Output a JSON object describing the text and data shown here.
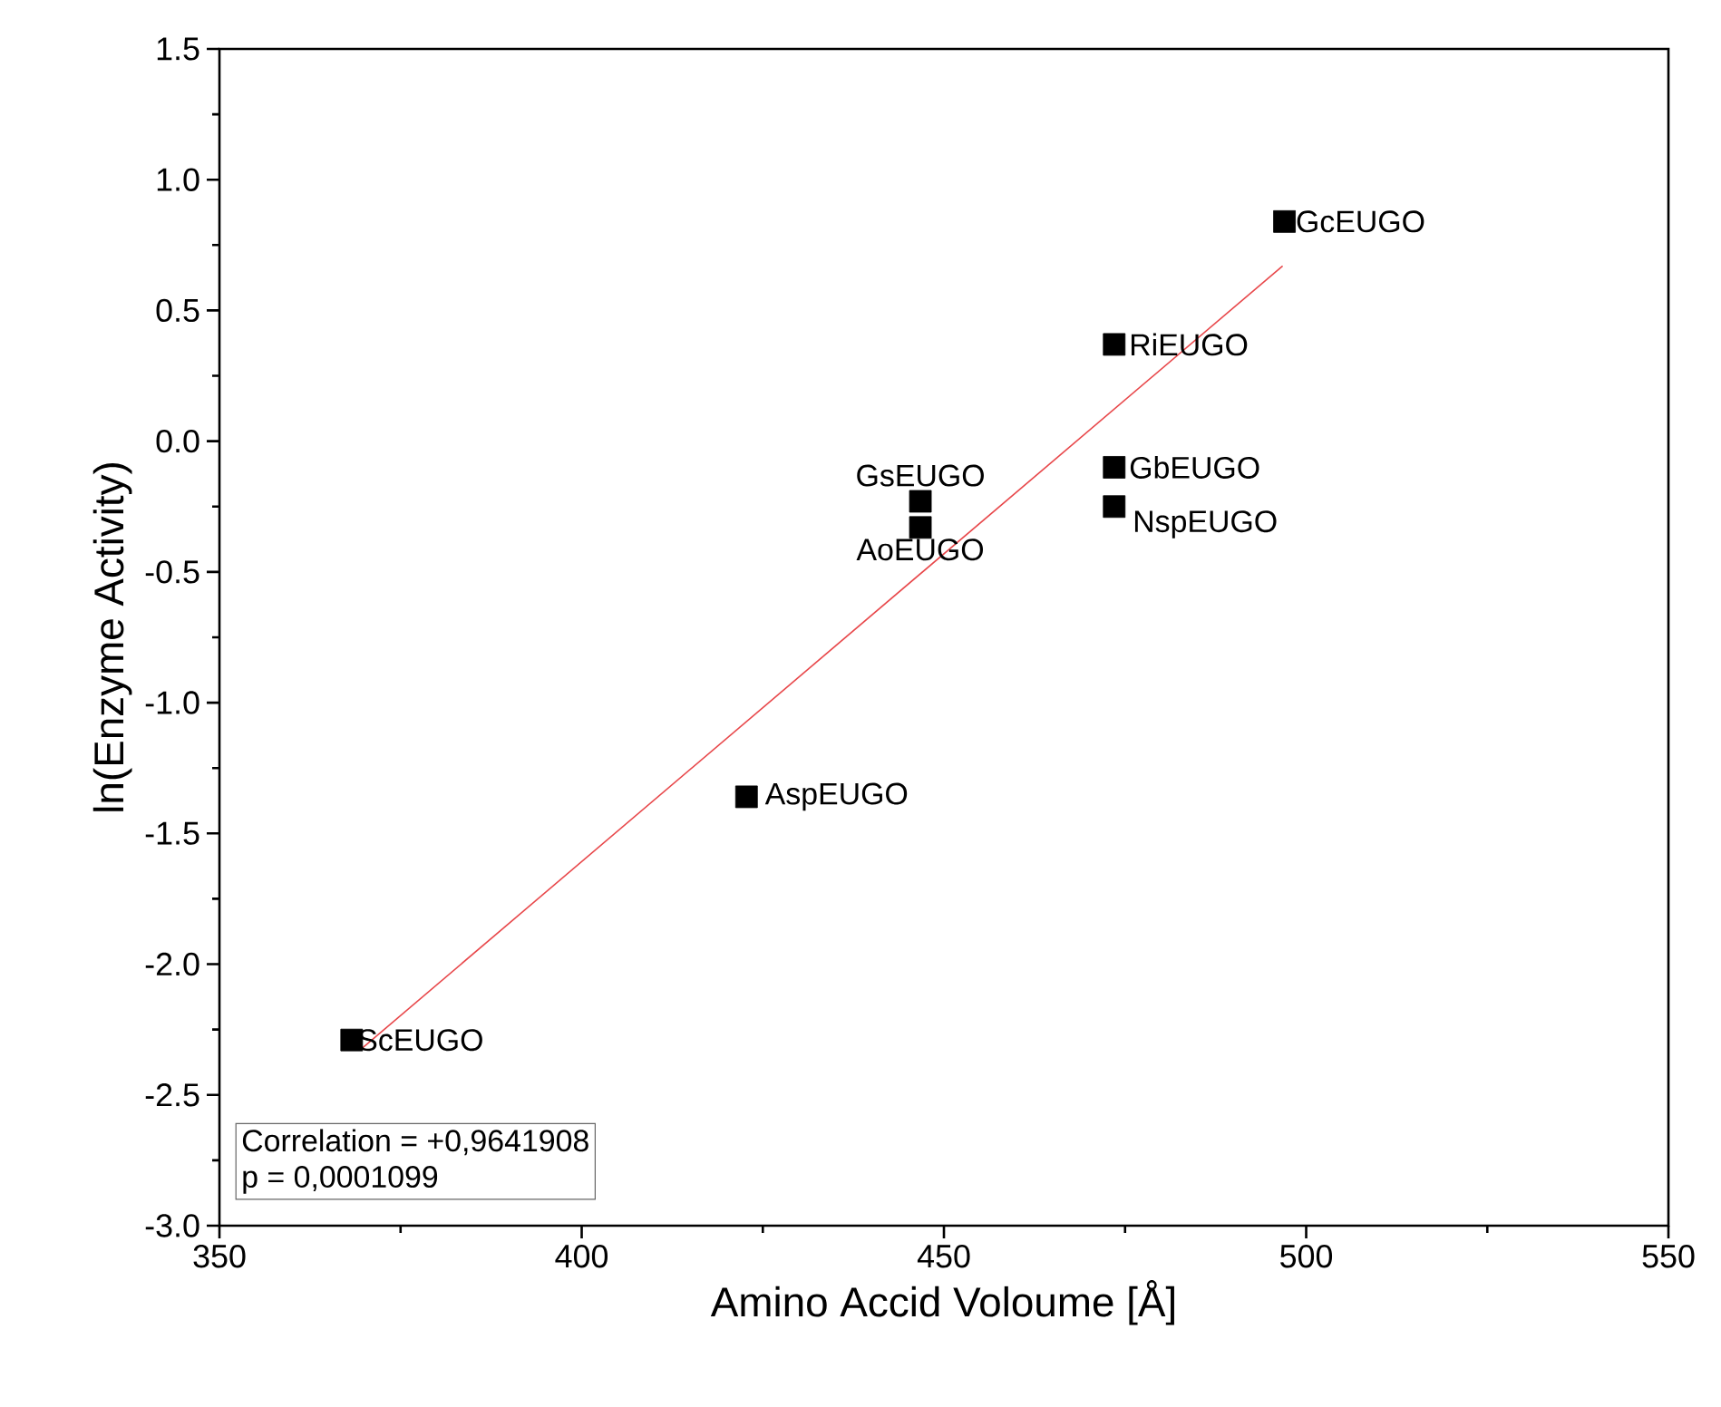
{
  "chart_data": {
    "type": "scatter",
    "xlabel": "Amino Accid Voloume [Å]",
    "ylabel": "ln(Enzyme Activity)",
    "xlim": [
      350,
      550
    ],
    "xticks": [
      350,
      400,
      450,
      500,
      550
    ],
    "ylim": [
      -3.0,
      1.5
    ],
    "yticks": [
      {
        "value": -3.0,
        "label": "-3.0"
      },
      {
        "value": -2.5,
        "label": "-2.5"
      },
      {
        "value": -2.0,
        "label": "-2.0"
      },
      {
        "value": -1.5,
        "label": "-1.5"
      },
      {
        "value": -1.0,
        "label": "-1.0"
      },
      {
        "value": -0.5,
        "label": "-0.5"
      },
      {
        "value": 0.0,
        "label": "0.0"
      },
      {
        "value": 0.5,
        "label": "0.5"
      },
      {
        "value": 1.0,
        "label": "1.0"
      },
      {
        "value": 1.5,
        "label": "1.5"
      }
    ],
    "series": [
      {
        "marker": "square",
        "color": "#000000",
        "x": [
          497,
          473.5,
          473.5,
          473.5,
          446.75,
          446.75,
          422.75,
          368.25
        ],
        "values": [
          0.84,
          0.37,
          -0.1,
          -0.25,
          -0.23,
          -0.33,
          -1.36,
          -2.29
        ]
      },
      {
        "type": "line",
        "color": "#e8474a",
        "x": [
          369.75,
          496.75
        ],
        "values": [
          -2.32,
          0.67
        ]
      }
    ],
    "annotations": [
      {
        "text": "GcEUGO",
        "x": 497,
        "y": 0.84
      },
      {
        "text": "RiEUGO",
        "x": 473.5,
        "y": 0.37
      },
      {
        "text": "GbEUGO",
        "x": 473.5,
        "y": -0.1
      },
      {
        "text": "NspEUGO",
        "x": 473.5,
        "y": -0.25
      },
      {
        "text": "GsEUGO",
        "x": 446.75,
        "y": -0.23
      },
      {
        "text": "AoEUGO",
        "x": 446.75,
        "y": -0.33
      },
      {
        "text": "AspEUGO",
        "x": 422.75,
        "y": -1.36
      },
      {
        "text": "ScEUGO",
        "x": 368.25,
        "y": -2.29
      },
      "Correlation = +0,9641908",
      "p = 0,0001099"
    ]
  }
}
